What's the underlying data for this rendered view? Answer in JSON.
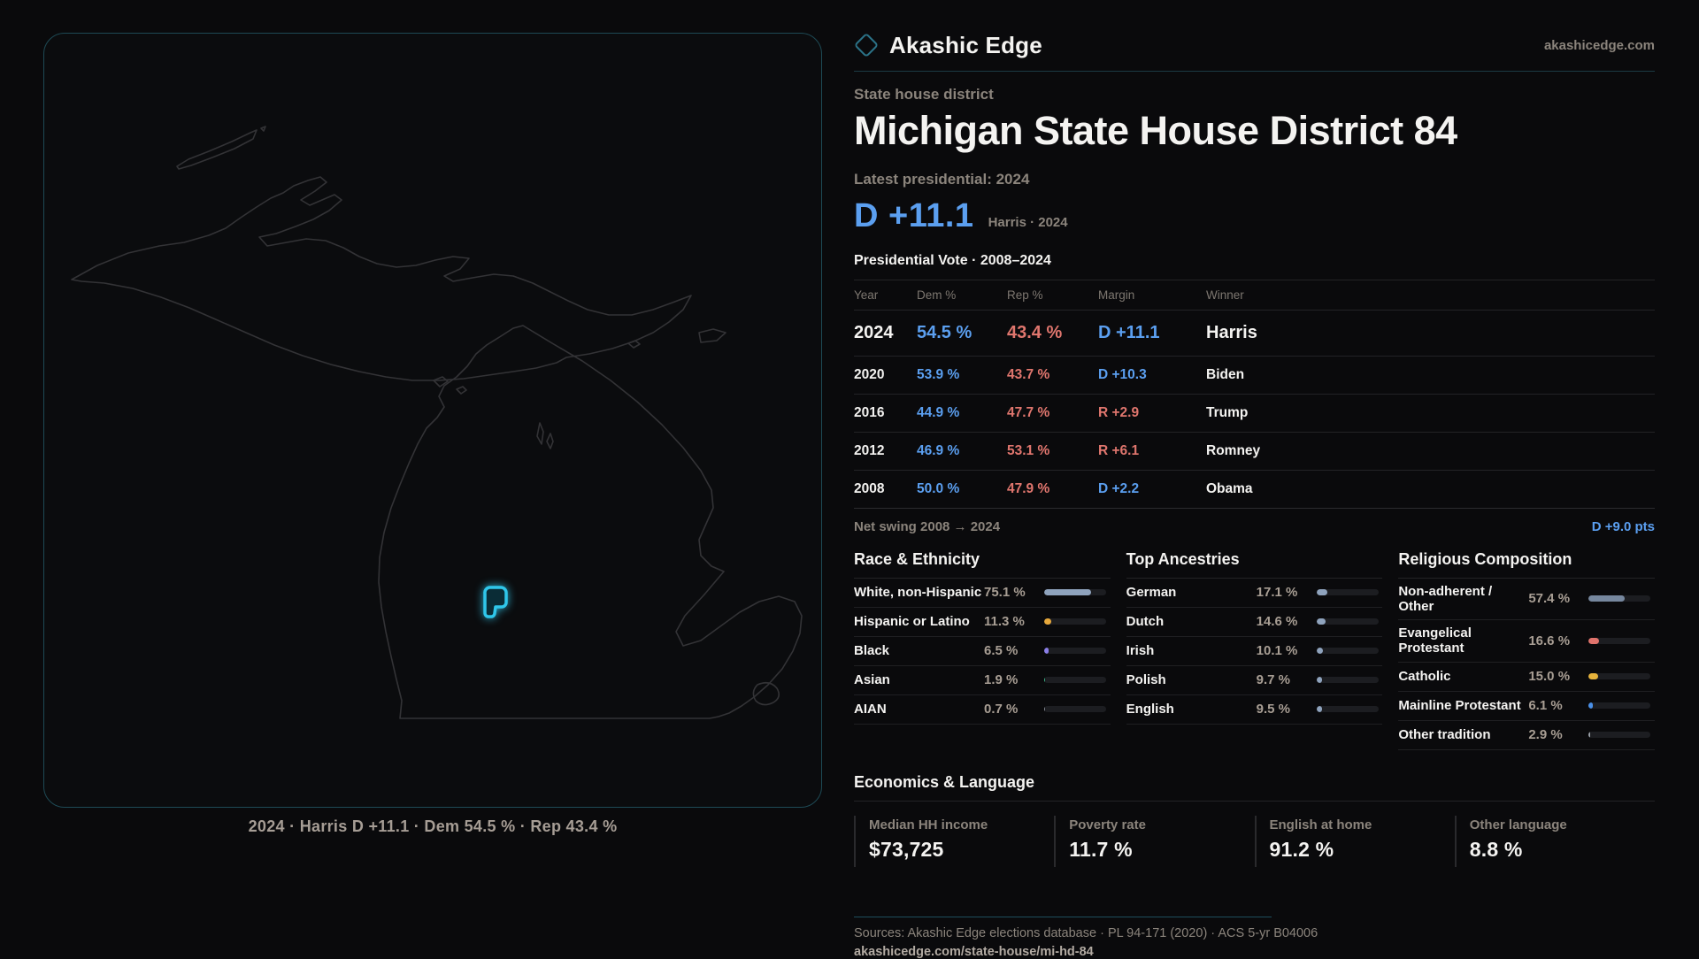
{
  "brand": {
    "name": "Akashic Edge",
    "domain": "akashicedge.com"
  },
  "page": {
    "kicker": "State house district",
    "title": "Michigan State House District 84",
    "latest_label": "Latest presidential: 2024",
    "headline_margin": "D +11.1",
    "headline_context": "Harris · 2024"
  },
  "map": {
    "caption": "2024 · Harris D +11.1 · Dem 54.5 % · Rep 43.4 %"
  },
  "table": {
    "title": "Presidential Vote · 2008–2024",
    "columns": [
      "Year",
      "Dem %",
      "Rep %",
      "Margin",
      "Winner"
    ],
    "rows": [
      {
        "year": "2024",
        "dem": "54.5 %",
        "rep": "43.4 %",
        "margin": "D +11.1",
        "winner": "Harris"
      },
      {
        "year": "2020",
        "dem": "53.9 %",
        "rep": "43.7 %",
        "margin": "D +10.3",
        "winner": "Biden"
      },
      {
        "year": "2016",
        "dem": "44.9 %",
        "rep": "47.7 %",
        "margin": "R +2.9",
        "winner": "Trump"
      },
      {
        "year": "2012",
        "dem": "46.9 %",
        "rep": "53.1 %",
        "margin": "R +6.1",
        "winner": "Romney"
      },
      {
        "year": "2008",
        "dem": "50.0 %",
        "rep": "47.9 %",
        "margin": "D +2.2",
        "winner": "Obama"
      }
    ]
  },
  "swing": {
    "label": "Net swing 2008 → 2024",
    "value": "D +9.0 pts"
  },
  "demographics": {
    "race": {
      "title": "Race & Ethnicity",
      "rows": [
        {
          "label": "White, non-Hispanic",
          "value": "75.1 %",
          "pct": 75.1,
          "color": "#8fa3bd"
        },
        {
          "label": "Hispanic or Latino",
          "value": "11.3 %",
          "pct": 11.3,
          "color": "#e6a83c"
        },
        {
          "label": "Black",
          "value": "6.5 %",
          "pct": 6.5,
          "color": "#8b7fe8"
        },
        {
          "label": "Asian",
          "value": "1.9 %",
          "pct": 1.9,
          "color": "#3bb88a"
        },
        {
          "label": "AIAN",
          "value": "0.7 %",
          "pct": 0.7,
          "color": "#8a8f98"
        }
      ]
    },
    "ancestry": {
      "title": "Top Ancestries",
      "rows": [
        {
          "label": "German",
          "value": "17.1 %",
          "pct": 17.1,
          "color": "#8fa3bd"
        },
        {
          "label": "Dutch",
          "value": "14.6 %",
          "pct": 14.6,
          "color": "#8fa3bd"
        },
        {
          "label": "Irish",
          "value": "10.1 %",
          "pct": 10.1,
          "color": "#8fa3bd"
        },
        {
          "label": "Polish",
          "value": "9.7 %",
          "pct": 9.7,
          "color": "#8fa3bd"
        },
        {
          "label": "English",
          "value": "9.5 %",
          "pct": 9.5,
          "color": "#8fa3bd"
        }
      ]
    },
    "religion": {
      "title": "Religious Composition",
      "rows": [
        {
          "label": "Non-adherent / Other",
          "value": "57.4 %",
          "pct": 57.4,
          "color": "#76879e"
        },
        {
          "label": "Evangelical Protestant",
          "value": "16.6 %",
          "pct": 16.6,
          "color": "#e0736c"
        },
        {
          "label": "Catholic",
          "value": "15.0 %",
          "pct": 15.0,
          "color": "#e6b33c"
        },
        {
          "label": "Mainline Protestant",
          "value": "6.1 %",
          "pct": 6.1,
          "color": "#4a90e8"
        },
        {
          "label": "Other tradition",
          "value": "2.9 %",
          "pct": 2.9,
          "color": "#9aa0a8"
        }
      ]
    }
  },
  "economics": {
    "title": "Economics & Language",
    "stats": [
      {
        "label": "Median HH income",
        "value": "$73,725"
      },
      {
        "label": "Poverty rate",
        "value": "11.7 %"
      },
      {
        "label": "English at home",
        "value": "91.2 %"
      },
      {
        "label": "Other language",
        "value": "8.8 %"
      }
    ]
  },
  "footer": {
    "sources": "Sources: Akashic Edge elections database · PL 94-171 (2020) · ACS 5-yr B04006",
    "permalink": "akashicedge.com/state-house/mi-hd-84"
  },
  "colors": {
    "dem": "#5b9ff0",
    "rep": "#e0766e",
    "accent": "#2fc6ea"
  }
}
